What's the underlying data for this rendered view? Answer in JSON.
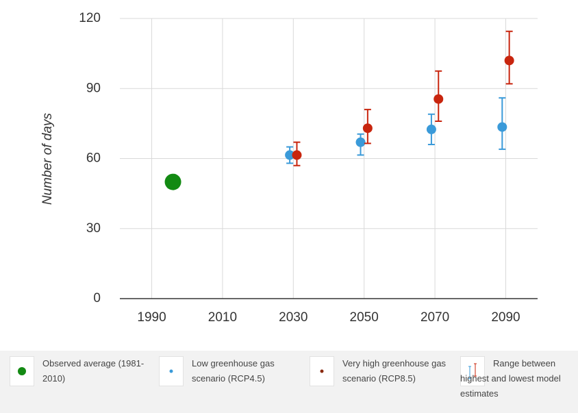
{
  "chart_data": {
    "type": "scatter",
    "ylabel": "Number of days",
    "xlim": [
      1981,
      2099
    ],
    "ylim": [
      0,
      120
    ],
    "xticks": [
      1990,
      2010,
      2030,
      2050,
      2070,
      2090
    ],
    "yticks": [
      0,
      30,
      60,
      90,
      120
    ],
    "grid": true,
    "series": [
      {
        "name": "Observed average (1981-2010)",
        "color": "#138a13",
        "size": 12,
        "x": [
          1996
        ],
        "values": [
          50
        ]
      },
      {
        "name": "Low greenhouse gas scenario (RCP4.5)",
        "color": "#3a9ad9",
        "size": 7,
        "x": [
          2029,
          2049,
          2069,
          2089
        ],
        "values": [
          61.5,
          67,
          72.5,
          73.5
        ],
        "low": [
          58,
          61.5,
          66,
          64
        ],
        "high": [
          65,
          70.5,
          79,
          86
        ]
      },
      {
        "name": "Very high greenhouse gas scenario (RCP8.5)",
        "color": "#c8250e",
        "size": 7,
        "x": [
          2031,
          2051,
          2071,
          2091
        ],
        "values": [
          61.5,
          73,
          85.5,
          102
        ],
        "low": [
          57,
          66.5,
          76,
          92
        ],
        "high": [
          67,
          81,
          97.5,
          114.5
        ]
      }
    ],
    "legend_note": "Range between highest and lowest model estimates"
  }
}
